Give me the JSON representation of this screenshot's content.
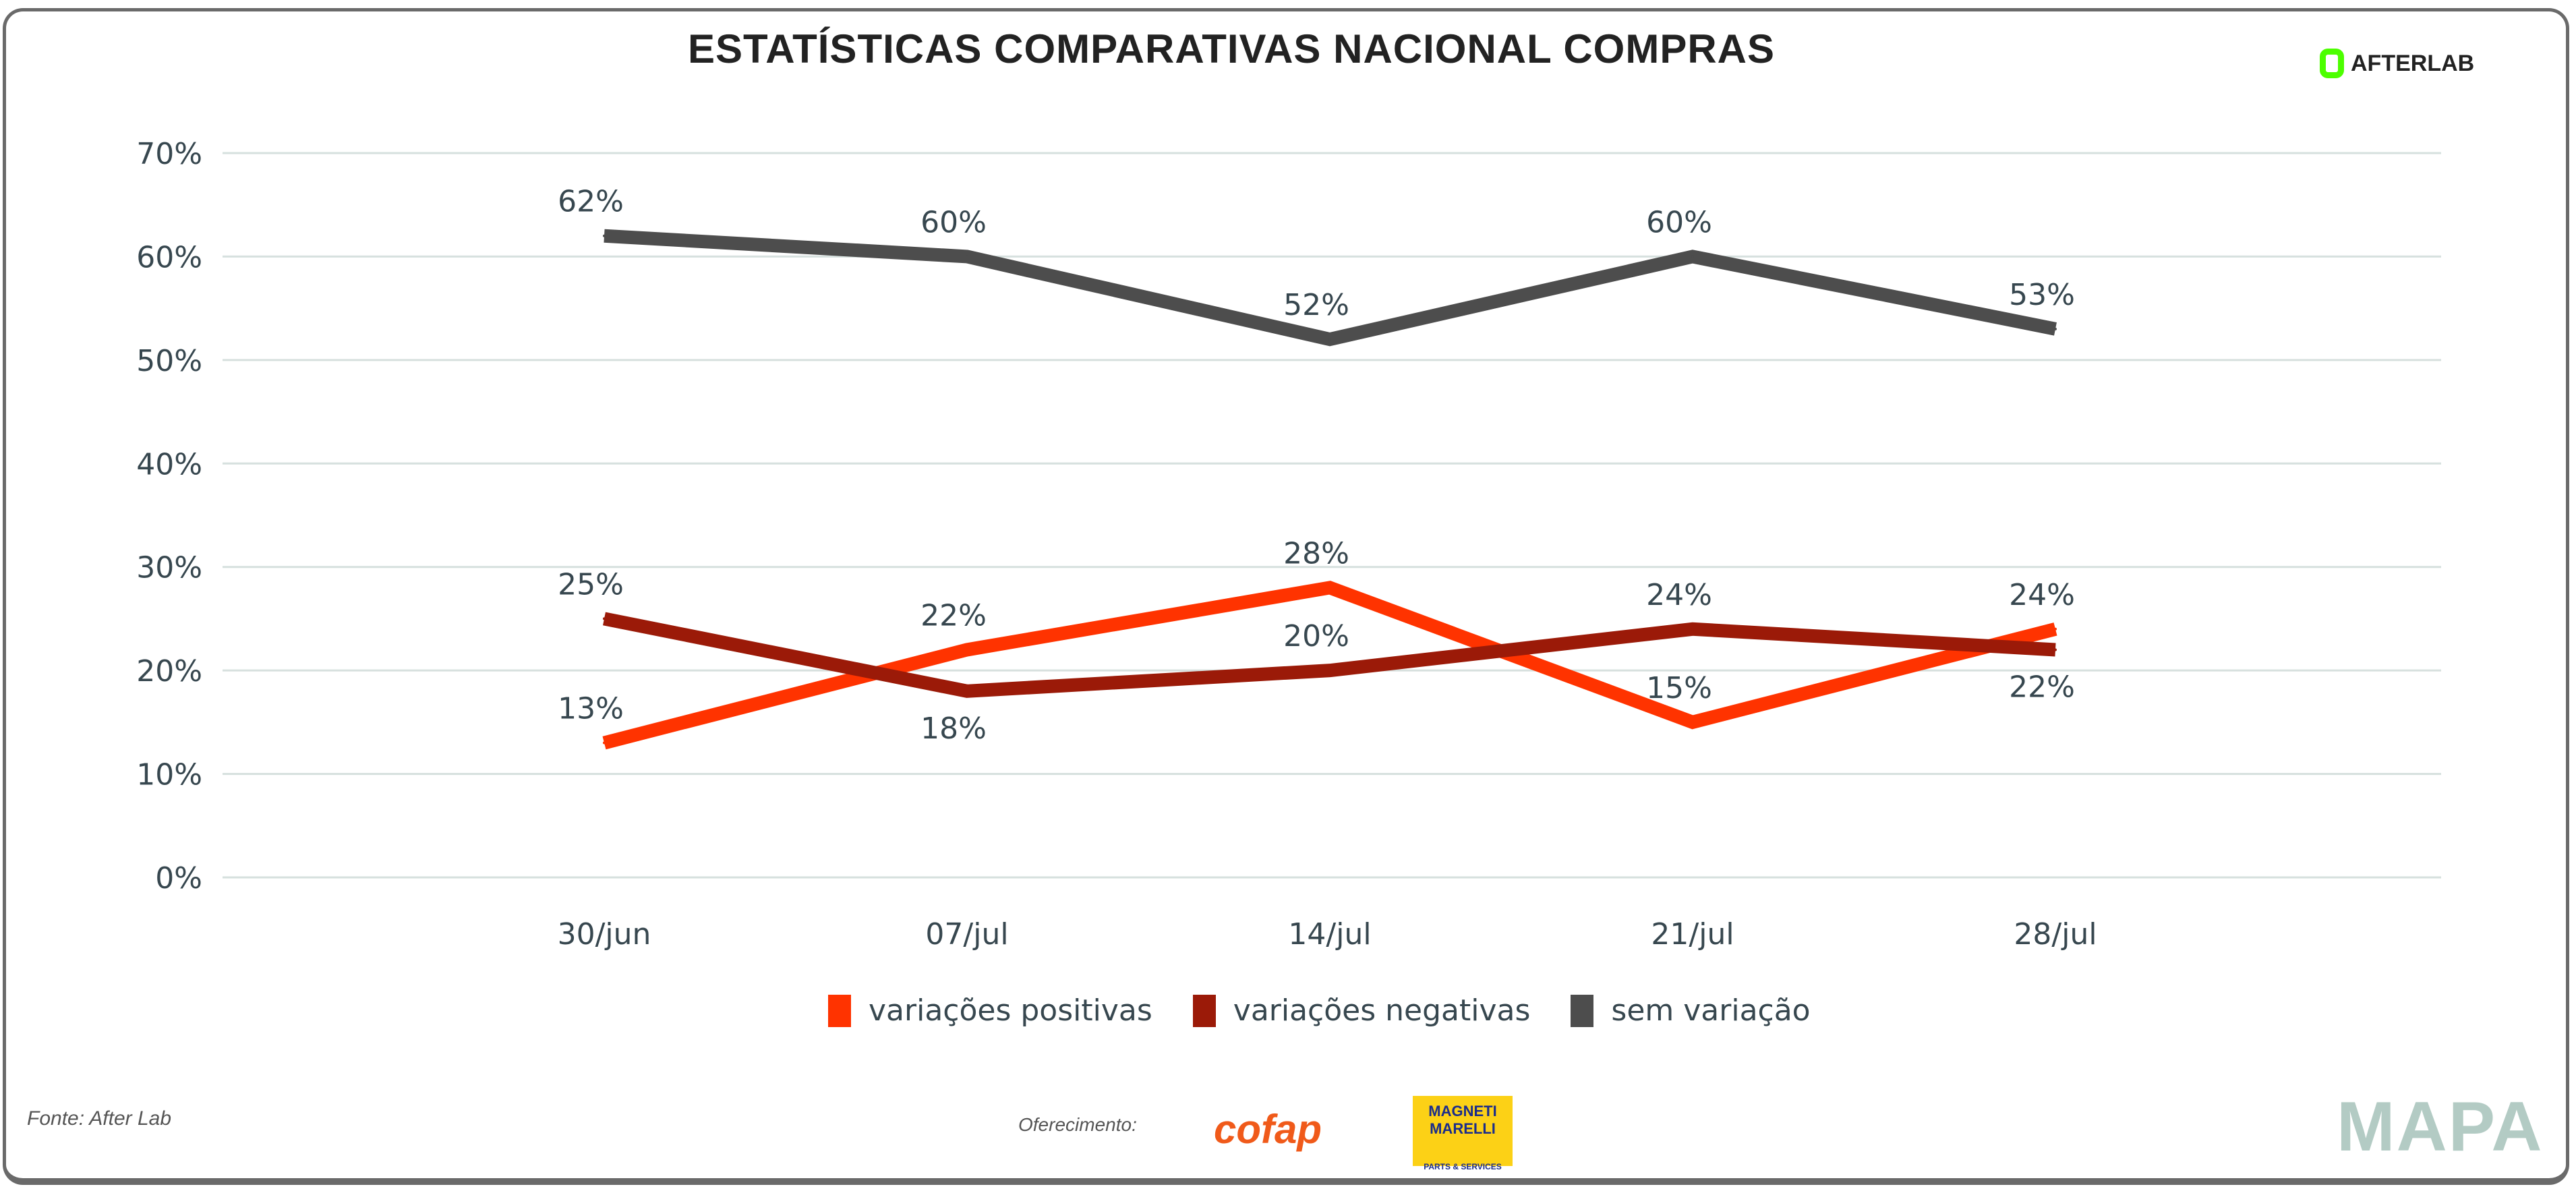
{
  "title": "ESTATÍSTICAS COMPARATIVAS NACIONAL COMPRAS",
  "brand": "AFTERLAB",
  "footer": {
    "source": "Fonte: After Lab",
    "sponsor_label": "Oferecimento:",
    "sponsors": [
      "cofap",
      "MAGNETI MARELLI",
      "PARTS & SERVICES"
    ],
    "mapa": "MAPA"
  },
  "colors": {
    "positivas": "#ff3300",
    "negativas": "#9b1a08",
    "sem": "#4d4d4d",
    "grid": "#d6e0de"
  },
  "chart_data": {
    "type": "line",
    "title": "ESTATÍSTICAS COMPARATIVAS NACIONAL COMPRAS",
    "categories": [
      "30/jun",
      "07/jul",
      "14/jul",
      "21/jul",
      "28/jul"
    ],
    "ylim": [
      0,
      70
    ],
    "yticks": [
      "0%",
      "10%",
      "20%",
      "30%",
      "40%",
      "50%",
      "60%",
      "70%"
    ],
    "grid": true,
    "legend": "bottom",
    "series": [
      {
        "name": "variações positivas",
        "values": [
          13,
          22,
          28,
          15,
          24
        ],
        "color": "#ff3300"
      },
      {
        "name": "variações negativas",
        "values": [
          25,
          18,
          20,
          24,
          22
        ],
        "color": "#9b1a08"
      },
      {
        "name": "sem variação",
        "values": [
          62,
          60,
          52,
          60,
          53
        ],
        "color": "#4d4d4d"
      }
    ]
  }
}
